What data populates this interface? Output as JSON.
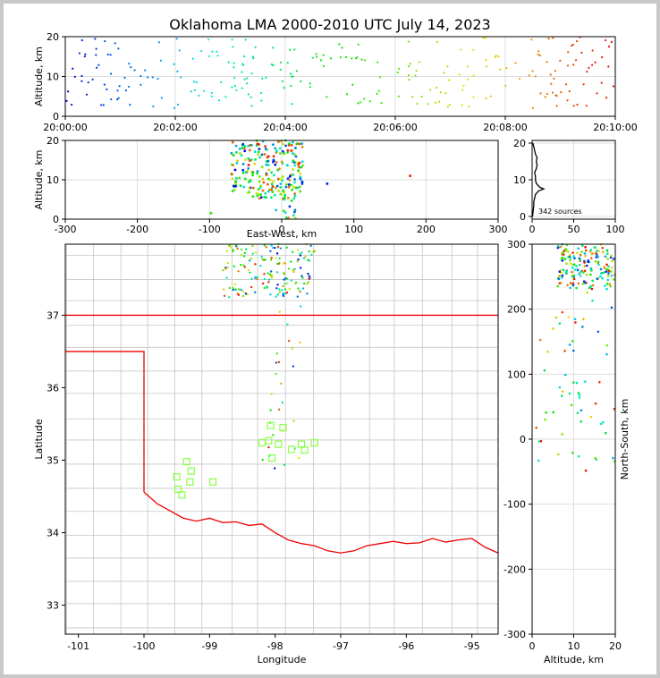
{
  "title": "Oklahoma LMA 2000-2010 UTC July 14, 2023",
  "chart_data": [
    {
      "panel": "time-altitude",
      "type": "scatter",
      "ylabel": "Altitude, km",
      "xlim_minutes": [
        0,
        10
      ],
      "ylim": [
        0,
        20
      ],
      "x_tick_labels": [
        "20:00:00",
        "20:02:00",
        "20:04:00",
        "20:06:00",
        "20:08:00",
        "20:10:00"
      ],
      "y_tick_labels": [
        "0",
        "10",
        "20"
      ],
      "grid": true,
      "color_encoding": "time (blue to red)"
    },
    {
      "panel": "east-west-altitude",
      "type": "scatter",
      "xlabel": "East-West, km",
      "ylabel": "Altitude, km",
      "xlim": [
        -300,
        300
      ],
      "ylim": [
        0,
        20
      ],
      "x_tick_labels": [
        "-300",
        "-200",
        "-100",
        "0",
        "100",
        "200",
        "300"
      ],
      "y_tick_labels": [
        "0",
        "10",
        "20"
      ],
      "grid": true
    },
    {
      "panel": "altitude-histogram",
      "type": "line",
      "xlim": [
        0,
        100
      ],
      "ylim": [
        0,
        20
      ],
      "x_tick_labels": [
        "0",
        "50",
        "100"
      ],
      "y_tick_labels": [
        "0",
        "10",
        "20"
      ],
      "annotation": "342 sources",
      "profile": [
        [
          0.5,
          0
        ],
        [
          1,
          1
        ],
        [
          1.5,
          2
        ],
        [
          2,
          3
        ],
        [
          2,
          4
        ],
        [
          3,
          5
        ],
        [
          4,
          6
        ],
        [
          8,
          7
        ],
        [
          14,
          7.5
        ],
        [
          9,
          8
        ],
        [
          5,
          9
        ],
        [
          4,
          10
        ],
        [
          4,
          11
        ],
        [
          3,
          12
        ],
        [
          5,
          13
        ],
        [
          6,
          14
        ],
        [
          5,
          15
        ],
        [
          6,
          16
        ],
        [
          4,
          17
        ],
        [
          3,
          18
        ],
        [
          2,
          19
        ],
        [
          1,
          20
        ]
      ]
    },
    {
      "panel": "plan-view",
      "type": "scatter",
      "xlabel": "Longitude",
      "ylabel": "Latitude",
      "xlim": [
        -101.2,
        -94.6
      ],
      "ylim": [
        32.6,
        37.98
      ],
      "x_tick_labels": [
        "-101",
        "-100",
        "-99",
        "-98",
        "-97",
        "-96",
        "-95"
      ],
      "y_tick_labels": [
        "33",
        "34",
        "35",
        "36",
        "37"
      ],
      "stations": [
        [
          -99.35,
          34.98
        ],
        [
          -99.28,
          34.85
        ],
        [
          -99.5,
          34.77
        ],
        [
          -99.3,
          34.7
        ],
        [
          -98.95,
          34.7
        ],
        [
          -99.48,
          34.6
        ],
        [
          -99.42,
          34.52
        ],
        [
          -98.07,
          35.48
        ],
        [
          -97.88,
          35.45
        ],
        [
          -98.1,
          35.27
        ],
        [
          -98.2,
          35.24
        ],
        [
          -97.95,
          35.22
        ],
        [
          -97.6,
          35.22
        ],
        [
          -97.4,
          35.24
        ],
        [
          -97.75,
          35.15
        ],
        [
          -97.55,
          35.14
        ],
        [
          -98.05,
          35.03
        ]
      ],
      "station_color": "#88ff44",
      "boundary_color": "#ee0000"
    },
    {
      "panel": "altitude-north-south",
      "type": "scatter",
      "xlabel": "Altitude, km",
      "ylabel": "North-South, km",
      "xlim": [
        0,
        20
      ],
      "ylim": [
        -300,
        300
      ],
      "x_tick_labels": [
        "0",
        "10",
        "20"
      ],
      "y_tick_labels": [
        "-300",
        "-200",
        "-100",
        "0",
        "100",
        "200",
        "300"
      ]
    }
  ]
}
